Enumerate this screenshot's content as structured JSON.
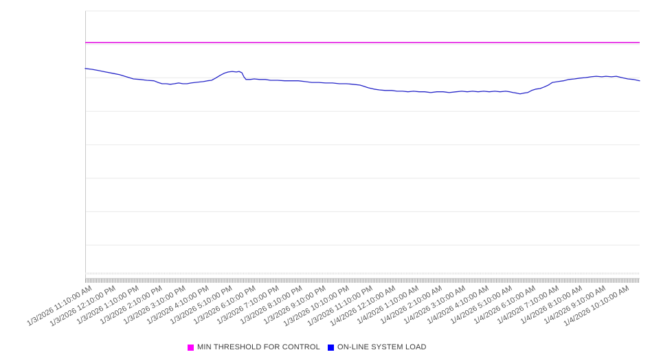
{
  "page": {
    "background": "#ffffff"
  },
  "legend": {
    "items": [
      {
        "label": "MIN THRESHOLD FOR CONTROL",
        "swatch": "#ff00ff"
      },
      {
        "label": "ON-LINE SYSTEM LOAD",
        "swatch": "#0000ff"
      }
    ]
  },
  "chart_data": {
    "type": "line",
    "title": "",
    "xlabel": "",
    "ylabel": "",
    "legend_position": "bottom-center",
    "grid": "horizontal",
    "y_axis": {
      "tick_labels_visible": false,
      "ylim": [
        0,
        100
      ],
      "gridline_count": 9,
      "gridline_step": 12.5
    },
    "x_tick_labels": [
      "1/3/2026 11:10:00 AM",
      "1/3/2026 12:10:00 PM",
      "1/3/2026 1:10:00 PM",
      "1/3/2026 2:10:00 PM",
      "1/3/2026 3:10:00 PM",
      "1/3/2026 4:10:00 PM",
      "1/3/2026 5:10:00 PM",
      "1/3/2026 6:10:00 PM",
      "1/3/2026 7:10:00 PM",
      "1/3/2026 8:10:00 PM",
      "1/3/2026 9:10:00 PM",
      "1/3/2026 10:10:00 PM",
      "1/3/2026 11:10:00 PM",
      "1/4/2026 12:10:00 AM",
      "1/4/2026 1:10:00 AM",
      "1/4/2026 2:10:00 AM",
      "1/4/2026 3:10:00 AM",
      "1/4/2026 4:10:00 AM",
      "1/4/2026 5:10:00 AM",
      "1/4/2026 6:10:00 AM",
      "1/4/2026 7:10:00 AM",
      "1/4/2026 8:10:00 AM",
      "1/4/2026 9:10:00 AM",
      "1/4/2026 10:10:00 AM"
    ],
    "series": [
      {
        "name": "MIN THRESHOLD FOR CONTROL",
        "color": "#e100e1",
        "style": "horizontal-threshold",
        "value": 88.2
      },
      {
        "name": "ON-LINE SYSTEM LOAD",
        "color": "#2424c8",
        "style": "line",
        "x_unit": "hours-from-start",
        "x_range": [
          0,
          23
        ],
        "points": [
          [
            0,
            78.5
          ],
          [
            0.28,
            78.2
          ],
          [
            0.57,
            77.7
          ],
          [
            0.85,
            77.2
          ],
          [
            1.14,
            76.7
          ],
          [
            1.42,
            76.2
          ],
          [
            1.71,
            75.4
          ],
          [
            2.0,
            74.6
          ],
          [
            2.28,
            74.4
          ],
          [
            2.56,
            74.1
          ],
          [
            2.85,
            73.9
          ],
          [
            3.02,
            73.3
          ],
          [
            3.19,
            72.8
          ],
          [
            3.36,
            72.8
          ],
          [
            3.53,
            72.6
          ],
          [
            3.7,
            72.8
          ],
          [
            3.88,
            73.1
          ],
          [
            4.05,
            72.8
          ],
          [
            4.22,
            72.8
          ],
          [
            4.39,
            73.1
          ],
          [
            4.56,
            73.3
          ],
          [
            4.9,
            73.6
          ],
          [
            5.07,
            73.9
          ],
          [
            5.24,
            74.1
          ],
          [
            5.41,
            74.9
          ],
          [
            5.59,
            75.9
          ],
          [
            5.76,
            76.7
          ],
          [
            5.93,
            77.2
          ],
          [
            6.1,
            77.4
          ],
          [
            6.27,
            77.2
          ],
          [
            6.38,
            77.4
          ],
          [
            6.5,
            76.9
          ],
          [
            6.58,
            75.4
          ],
          [
            6.67,
            74.4
          ],
          [
            6.84,
            74.4
          ],
          [
            7.01,
            74.6
          ],
          [
            7.24,
            74.4
          ],
          [
            7.47,
            74.4
          ],
          [
            7.69,
            74.1
          ],
          [
            7.98,
            74.1
          ],
          [
            8.27,
            73.9
          ],
          [
            8.55,
            73.9
          ],
          [
            8.84,
            73.9
          ],
          [
            9.12,
            73.6
          ],
          [
            9.4,
            73.3
          ],
          [
            9.69,
            73.3
          ],
          [
            9.97,
            73.1
          ],
          [
            10.26,
            73.1
          ],
          [
            10.54,
            72.8
          ],
          [
            10.83,
            72.8
          ],
          [
            11.11,
            72.6
          ],
          [
            11.4,
            72.3
          ],
          [
            11.57,
            71.8
          ],
          [
            11.74,
            71.3
          ],
          [
            11.97,
            70.8
          ],
          [
            12.2,
            70.5
          ],
          [
            12.45,
            70.3
          ],
          [
            12.71,
            70.3
          ],
          [
            12.94,
            70.0
          ],
          [
            13.17,
            70.0
          ],
          [
            13.39,
            69.8
          ],
          [
            13.62,
            70.0
          ],
          [
            13.85,
            69.8
          ],
          [
            14.08,
            69.8
          ],
          [
            14.33,
            69.5
          ],
          [
            14.59,
            69.8
          ],
          [
            14.85,
            69.8
          ],
          [
            15.1,
            69.5
          ],
          [
            15.39,
            69.8
          ],
          [
            15.62,
            70.0
          ],
          [
            15.85,
            69.8
          ],
          [
            16.07,
            70.0
          ],
          [
            16.3,
            69.8
          ],
          [
            16.53,
            70.0
          ],
          [
            16.76,
            69.8
          ],
          [
            16.99,
            70.0
          ],
          [
            17.21,
            69.8
          ],
          [
            17.44,
            70.0
          ],
          [
            17.61,
            69.8
          ],
          [
            17.75,
            69.5
          ],
          [
            17.9,
            69.3
          ],
          [
            18.04,
            69.0
          ],
          [
            18.18,
            69.3
          ],
          [
            18.35,
            69.5
          ],
          [
            18.52,
            70.3
          ],
          [
            18.7,
            70.8
          ],
          [
            18.87,
            71.0
          ],
          [
            19.04,
            71.6
          ],
          [
            19.21,
            72.3
          ],
          [
            19.38,
            73.3
          ],
          [
            19.61,
            73.6
          ],
          [
            19.84,
            73.9
          ],
          [
            20.06,
            74.4
          ],
          [
            20.29,
            74.6
          ],
          [
            20.52,
            74.9
          ],
          [
            20.75,
            75.1
          ],
          [
            20.98,
            75.4
          ],
          [
            21.2,
            75.6
          ],
          [
            21.43,
            75.4
          ],
          [
            21.6,
            75.6
          ],
          [
            21.83,
            75.4
          ],
          [
            22.03,
            75.6
          ],
          [
            22.26,
            75.1
          ],
          [
            22.51,
            74.6
          ],
          [
            22.74,
            74.4
          ],
          [
            23,
            73.9
          ]
        ]
      }
    ]
  }
}
